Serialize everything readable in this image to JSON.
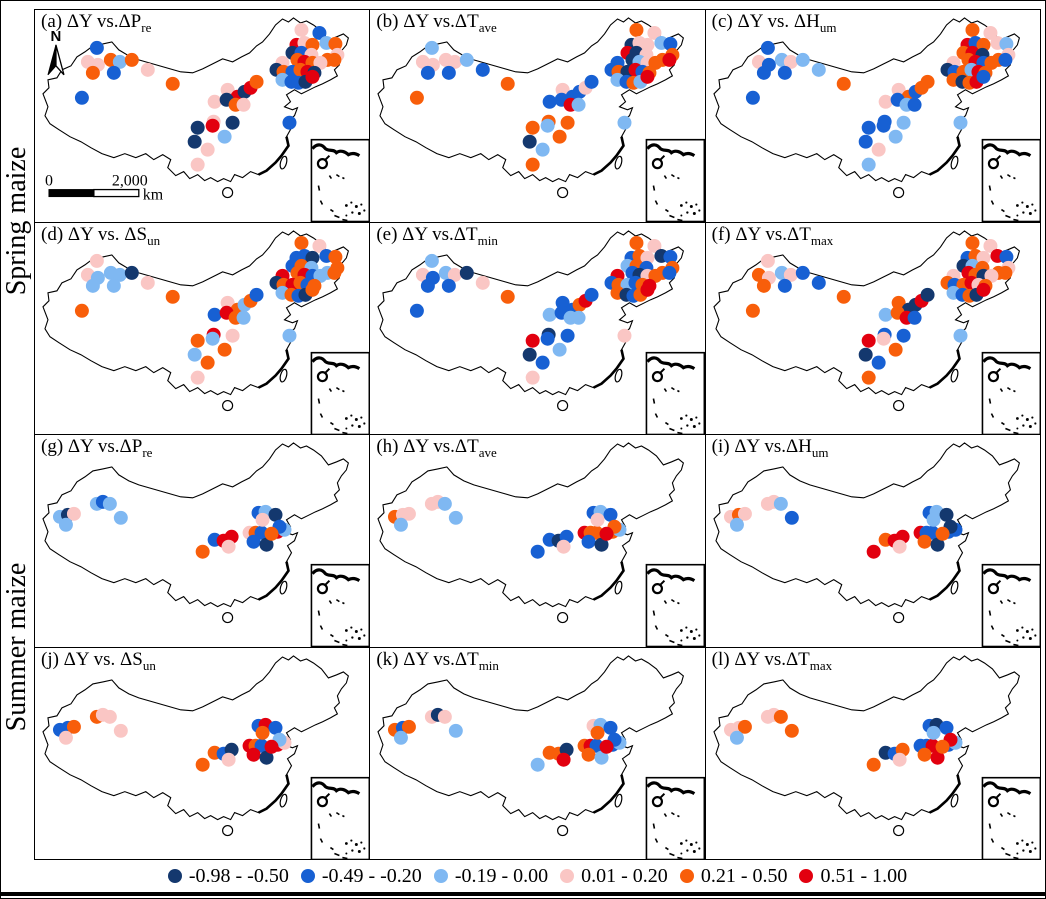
{
  "row_groups": [
    {
      "label": "Spring maize"
    },
    {
      "label": "Summer maize"
    }
  ],
  "legend": {
    "items": [
      {
        "label": "-0.98 - -0.50",
        "color": "#14386E"
      },
      {
        "label": "-0.49 - -0.20",
        "color": "#1760D3"
      },
      {
        "label": "-0.19 - 0.00",
        "color": "#7FB8F2"
      },
      {
        "label": "0.01 - 0.20",
        "color": "#FAC6C4"
      },
      {
        "label": "0.21 - 0.50",
        "color": "#F85E0A"
      },
      {
        "label": "0.51 - 1.00",
        "color": "#E2000F"
      }
    ]
  },
  "map_extras": {
    "north_label": "N",
    "scale_bar": {
      "start": "0",
      "end": "2,000",
      "unit": "km"
    }
  },
  "chart_data": {
    "type": "scatter",
    "description": "Correlation (Delta Y vs climate variable) at stations on maps of China; 12 panels, 2 crop groups",
    "palette": [
      "#14386E",
      "#1760D3",
      "#7FB8F2",
      "#FAC6C4",
      "#F85E0A",
      "#E2000F"
    ],
    "legend_ranges": [
      "-0.98 - -0.50",
      "-0.49 - -0.20",
      "-0.19 - 0.00",
      "0.01 - 0.20",
      "0.21 - 0.50",
      "0.51 - 1.00"
    ],
    "stations_spring": [
      [
        62,
        38
      ],
      [
        53,
        52
      ],
      [
        63,
        55
      ],
      [
        76,
        50
      ],
      [
        85,
        52
      ],
      [
        97,
        50
      ],
      [
        58,
        63
      ],
      [
        79,
        63
      ],
      [
        113,
        60
      ],
      [
        47,
        88
      ],
      [
        138,
        74
      ],
      [
        180,
        92
      ],
      [
        193,
        80
      ],
      [
        203,
        87
      ],
      [
        210,
        82
      ],
      [
        216,
        78
      ],
      [
        222,
        72
      ],
      [
        192,
        90
      ],
      [
        201,
        95
      ],
      [
        209,
        95
      ],
      [
        179,
        112
      ],
      [
        198,
        113
      ],
      [
        163,
        118
      ],
      [
        178,
        116
      ],
      [
        160,
        132
      ],
      [
        190,
        127
      ],
      [
        173,
        140
      ],
      [
        163,
        155
      ],
      [
        255,
        113
      ],
      [
        267,
        20
      ],
      [
        285,
        23
      ],
      [
        262,
        35
      ],
      [
        270,
        33
      ],
      [
        278,
        35
      ],
      [
        292,
        33
      ],
      [
        301,
        34
      ],
      [
        258,
        43
      ],
      [
        267,
        43
      ],
      [
        277,
        45
      ],
      [
        303,
        45
      ],
      [
        293,
        50
      ],
      [
        248,
        53
      ],
      [
        263,
        50
      ],
      [
        270,
        52
      ],
      [
        278,
        53
      ],
      [
        286,
        53
      ],
      [
        242,
        60
      ],
      [
        249,
        62
      ],
      [
        258,
        62
      ],
      [
        266,
        60
      ],
      [
        273,
        62
      ],
      [
        280,
        63
      ],
      [
        300,
        50
      ],
      [
        248,
        70
      ],
      [
        257,
        72
      ],
      [
        264,
        73
      ],
      [
        271,
        72
      ],
      [
        278,
        67
      ]
    ],
    "stations_summer": [
      [
        25,
        82
      ],
      [
        33,
        80
      ],
      [
        39,
        79
      ],
      [
        31,
        90
      ],
      [
        62,
        69
      ],
      [
        68,
        67
      ],
      [
        75,
        69
      ],
      [
        86,
        83
      ],
      [
        168,
        117
      ],
      [
        180,
        105
      ],
      [
        189,
        106
      ],
      [
        197,
        102
      ],
      [
        194,
        112
      ],
      [
        215,
        98
      ],
      [
        221,
        98
      ],
      [
        227,
        98
      ],
      [
        219,
        107
      ],
      [
        232,
        110
      ],
      [
        243,
        97
      ],
      [
        250,
        95
      ],
      [
        224,
        78
      ],
      [
        231,
        77
      ],
      [
        241,
        80
      ],
      [
        228,
        85
      ],
      [
        245,
        92
      ],
      [
        237,
        99
      ]
    ],
    "panels": [
      {
        "id": "a",
        "group": "Spring maize",
        "title_prefix": "(a) ΔY vs.ΔP",
        "title_sub": "re",
        "stations": "spring",
        "colors": [
          1,
          3,
          3,
          4,
          2,
          4,
          4,
          1,
          3,
          1,
          4,
          3,
          3,
          5,
          0,
          5,
          4,
          0,
          4,
          3,
          3,
          0,
          0,
          5,
          0,
          2,
          3,
          3,
          1,
          3,
          1,
          5,
          3,
          4,
          2,
          4,
          0,
          1,
          3,
          3,
          4,
          3,
          4,
          5,
          4,
          3,
          0,
          4,
          1,
          4,
          5,
          0,
          4,
          2,
          1,
          1,
          0,
          5
        ]
      },
      {
        "id": "b",
        "group": "Spring maize",
        "title_prefix": "(b) ΔY vs.ΔT",
        "title_sub": "ave",
        "stations": "spring",
        "colors": [
          2,
          3,
          3,
          3,
          3,
          2,
          1,
          1,
          1,
          4,
          4,
          1,
          3,
          1,
          1,
          3,
          1,
          1,
          5,
          2,
          4,
          4,
          4,
          2,
          0,
          4,
          2,
          4,
          2,
          4,
          3,
          0,
          3,
          3,
          2,
          1,
          5,
          0,
          3,
          4,
          4,
          1,
          0,
          2,
          3,
          4,
          1,
          4,
          0,
          5,
          1,
          4,
          5,
          2,
          1,
          4,
          2,
          5
        ]
      },
      {
        "id": "c",
        "group": "Spring maize",
        "title_prefix": "(c) ΔY vs. ΔH",
        "title_sub": "um",
        "stations": "spring",
        "colors": [
          1,
          3,
          1,
          2,
          3,
          2,
          1,
          1,
          2,
          1,
          4,
          3,
          3,
          4,
          1,
          4,
          4,
          1,
          2,
          1,
          1,
          2,
          1,
          1,
          1,
          2,
          3,
          2,
          2,
          4,
          3,
          5,
          1,
          4,
          3,
          2,
          4,
          5,
          0,
          3,
          4,
          3,
          4,
          5,
          1,
          4,
          0,
          1,
          4,
          2,
          5,
          4,
          1,
          4,
          0,
          4,
          5,
          1
        ]
      },
      {
        "id": "d",
        "group": "Spring maize",
        "title_prefix": "(d) ΔY vs. ΔS",
        "title_sub": "un",
        "stations": "spring",
        "colors": [
          3,
          3,
          2,
          2,
          2,
          0,
          2,
          2,
          3,
          4,
          4,
          1,
          3,
          4,
          2,
          4,
          1,
          5,
          4,
          2,
          5,
          3,
          4,
          2,
          2,
          4,
          4,
          3,
          2,
          4,
          3,
          1,
          1,
          0,
          1,
          4,
          1,
          4,
          2,
          4,
          2,
          5,
          4,
          5,
          1,
          2,
          0,
          4,
          5,
          4,
          1,
          4,
          4,
          2,
          4,
          1,
          0,
          4
        ]
      },
      {
        "id": "e",
        "group": "Spring maize",
        "title_prefix": "(e) ΔY vs.ΔT",
        "title_sub": "min",
        "stations": "spring",
        "colors": [
          2,
          3,
          1,
          2,
          3,
          0,
          1,
          1,
          3,
          1,
          4,
          2,
          1,
          1,
          4,
          5,
          1,
          1,
          2,
          2,
          0,
          1,
          5,
          1,
          0,
          2,
          1,
          3,
          3,
          4,
          3,
          1,
          4,
          3,
          0,
          1,
          2,
          4,
          1,
          4,
          4,
          5,
          1,
          0,
          3,
          4,
          1,
          4,
          2,
          1,
          4,
          5,
          1,
          4,
          0,
          1,
          4,
          5
        ]
      },
      {
        "id": "f",
        "group": "Spring maize",
        "title_prefix": "(f) ΔY vs.ΔT",
        "title_sub": "max",
        "stations": "spring",
        "colors": [
          3,
          4,
          3,
          2,
          3,
          1,
          4,
          1,
          1,
          4,
          4,
          2,
          4,
          0,
          0,
          5,
          0,
          4,
          5,
          1,
          1,
          1,
          5,
          3,
          0,
          4,
          1,
          4,
          2,
          4,
          3,
          1,
          4,
          3,
          5,
          1,
          0,
          2,
          4,
          3,
          4,
          3,
          5,
          4,
          0,
          3,
          4,
          1,
          4,
          5,
          3,
          4,
          4,
          2,
          1,
          4,
          0,
          5
        ]
      },
      {
        "id": "g",
        "group": "Summer maize",
        "title_prefix": "(g) ΔY vs.ΔP",
        "title_sub": "re",
        "stations": "summer",
        "colors": [
          2,
          0,
          3,
          2,
          2,
          1,
          2,
          2,
          4,
          1,
          5,
          5,
          3,
          3,
          4,
          1,
          1,
          0,
          5,
          2,
          1,
          2,
          0,
          3,
          1,
          4
        ]
      },
      {
        "id": "h",
        "group": "Summer maize",
        "title_prefix": "(h) ΔY vs.ΔT",
        "title_sub": "ave",
        "stations": "summer",
        "colors": [
          4,
          3,
          3,
          2,
          3,
          3,
          2,
          2,
          1,
          1,
          0,
          1,
          3,
          5,
          4,
          4,
          1,
          0,
          4,
          2,
          1,
          2,
          1,
          3,
          4,
          5
        ]
      },
      {
        "id": "i",
        "group": "Summer maize",
        "title_prefix": "(i) ΔY vs.ΔH",
        "title_sub": "um",
        "stations": "summer",
        "colors": [
          3,
          4,
          3,
          2,
          3,
          3,
          2,
          1,
          5,
          4,
          5,
          5,
          3,
          5,
          1,
          1,
          4,
          0,
          1,
          1,
          1,
          2,
          0,
          2,
          0,
          4
        ]
      },
      {
        "id": "j",
        "group": "Summer maize",
        "title_prefix": "(j) ΔY vs. ΔS",
        "title_sub": "un",
        "stations": "summer",
        "colors": [
          1,
          1,
          4,
          3,
          4,
          3,
          3,
          3,
          4,
          4,
          1,
          0,
          3,
          5,
          4,
          1,
          5,
          0,
          5,
          3,
          1,
          5,
          1,
          4,
          2,
          5
        ]
      },
      {
        "id": "k",
        "group": "Summer maize",
        "title_prefix": "(k) ΔY vs.ΔT",
        "title_sub": "min",
        "stations": "summer",
        "colors": [
          4,
          1,
          4,
          2,
          3,
          0,
          3,
          2,
          2,
          4,
          4,
          0,
          5,
          4,
          5,
          1,
          4,
          2,
          1,
          2,
          3,
          2,
          1,
          4,
          1,
          5
        ]
      },
      {
        "id": "l",
        "group": "Summer maize",
        "title_prefix": "(l) ΔY vs.ΔT",
        "title_sub": "max",
        "stations": "summer",
        "colors": [
          3,
          3,
          4,
          2,
          3,
          3,
          4,
          4,
          4,
          0,
          1,
          4,
          3,
          1,
          1,
          5,
          4,
          5,
          1,
          2,
          1,
          0,
          1,
          2,
          5,
          4
        ]
      }
    ]
  }
}
